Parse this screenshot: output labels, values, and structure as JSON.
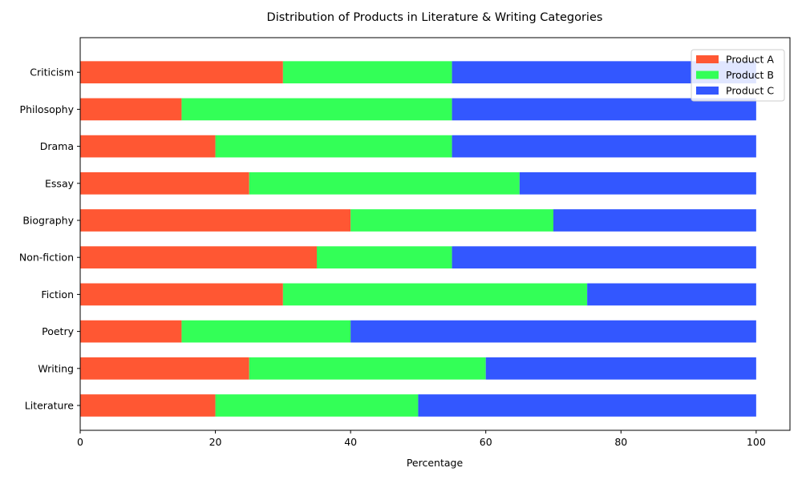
{
  "chart_data": {
    "type": "bar",
    "orientation": "horizontal",
    "stacked": true,
    "title": "Distribution of Products in Literature & Writing Categories",
    "xlabel": "Percentage",
    "ylabel": "",
    "xlim": [
      0,
      105
    ],
    "xticks": [
      0,
      20,
      40,
      60,
      80,
      100
    ],
    "grid": false,
    "legend_position": "top-right",
    "categories": [
      "Literature",
      "Writing",
      "Poetry",
      "Fiction",
      "Non-fiction",
      "Biography",
      "Essay",
      "Drama",
      "Philosophy",
      "Criticism"
    ],
    "series": [
      {
        "name": "Product A",
        "color": "#ff5733",
        "values": [
          20,
          25,
          15,
          30,
          35,
          40,
          25,
          20,
          15,
          30
        ]
      },
      {
        "name": "Product B",
        "color": "#33ff57",
        "values": [
          30,
          35,
          25,
          45,
          20,
          30,
          40,
          35,
          40,
          25
        ]
      },
      {
        "name": "Product C",
        "color": "#3357ff",
        "values": [
          50,
          40,
          60,
          25,
          45,
          30,
          35,
          45,
          45,
          45
        ]
      }
    ]
  }
}
